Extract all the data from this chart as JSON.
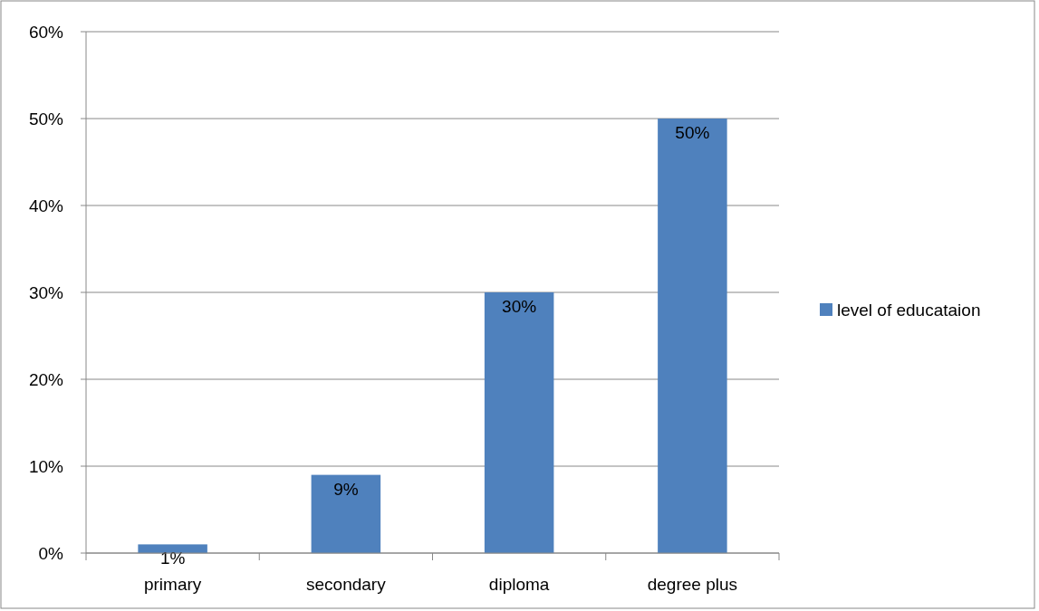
{
  "chart_data": {
    "type": "bar",
    "categories": [
      "primary",
      "secondary",
      "diploma",
      "degree plus"
    ],
    "series": [
      {
        "name": "level of educataion",
        "color": "#4f81bd",
        "values": [
          1,
          9,
          30,
          50
        ],
        "value_labels": [
          "1%",
          "9%",
          "30%",
          "50%"
        ]
      }
    ],
    "ylim": [
      0,
      60
    ],
    "yticks": [
      {
        "value": 0,
        "label": "0%"
      },
      {
        "value": 10,
        "label": "10%"
      },
      {
        "value": 20,
        "label": "20%"
      },
      {
        "value": 30,
        "label": "30%"
      },
      {
        "value": 40,
        "label": "40%"
      },
      {
        "value": 50,
        "label": "50%"
      },
      {
        "value": 60,
        "label": "60%"
      }
    ],
    "grid": "y",
    "legend": "right"
  }
}
